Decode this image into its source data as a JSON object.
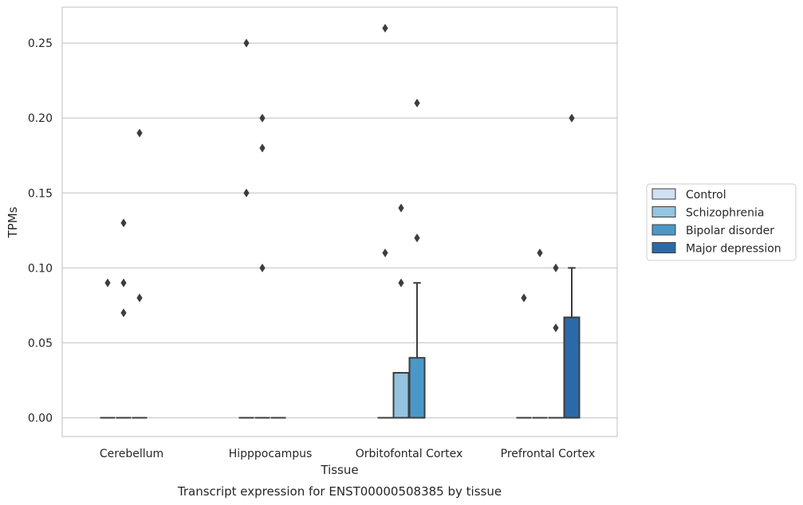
{
  "chart_data": {
    "type": "box",
    "title": "",
    "caption": "Transcript expression for ENST00000508385 by tissue",
    "xlabel": "Tissue",
    "ylabel": "TPMs",
    "ylim": [
      -0.0125,
      0.274
    ],
    "yticks": [
      "0.00",
      "0.05",
      "0.10",
      "0.15",
      "0.20",
      "0.25"
    ],
    "grid": "horizontal",
    "legend_position": "right, outside plot",
    "categories": [
      "Cerebellum",
      "Hipppocampus",
      "Orbitofontal Cortex",
      "Prefrontal Cortex"
    ],
    "series": [
      {
        "name": "Control",
        "color": "#d0e1f2",
        "boxes": [
          {
            "q1": 0,
            "median": 0,
            "q3": 0,
            "whisker_high": 0,
            "outliers": [
              0.09
            ]
          },
          {
            "q1": 0,
            "median": 0,
            "q3": 0,
            "whisker_high": 0,
            "outliers": [
              0.15,
              0.25
            ]
          },
          {
            "q1": 0,
            "median": 0,
            "q3": 0,
            "whisker_high": 0,
            "outliers": [
              0.11,
              0.26
            ]
          },
          {
            "q1": 0,
            "median": 0,
            "q3": 0,
            "whisker_high": 0,
            "outliers": [
              0.08
            ]
          }
        ]
      },
      {
        "name": "Schizophrenia",
        "color": "#94c4df",
        "boxes": [
          {
            "q1": 0,
            "median": 0,
            "q3": 0,
            "whisker_high": 0,
            "outliers": [
              0.07,
              0.09,
              0.13
            ]
          },
          {
            "q1": 0,
            "median": 0,
            "q3": 0,
            "whisker_high": 0,
            "outliers": [
              0.1,
              0.18,
              0.2
            ]
          },
          {
            "q1": 0,
            "median": 0,
            "q3": 0.03,
            "whisker_high": 0.03,
            "outliers": [
              0.09,
              0.14
            ]
          },
          {
            "q1": 0,
            "median": 0,
            "q3": 0,
            "whisker_high": 0,
            "outliers": [
              0.11
            ]
          }
        ]
      },
      {
        "name": "Bipolar disorder",
        "color": "#4a98c9",
        "boxes": [
          {
            "q1": 0,
            "median": 0,
            "q3": 0,
            "whisker_high": 0,
            "outliers": [
              0.08,
              0.19
            ]
          },
          {
            "q1": 0,
            "median": 0,
            "q3": 0,
            "whisker_high": 0,
            "outliers": []
          },
          {
            "q1": 0,
            "median": 0,
            "q3": 0.04,
            "whisker_high": 0.09,
            "outliers": [
              0.12,
              0.21
            ]
          },
          {
            "q1": 0,
            "median": 0,
            "q3": 0,
            "whisker_high": 0,
            "outliers": [
              0.06,
              0.1
            ]
          }
        ]
      },
      {
        "name": "Major depression",
        "color": "#2b6aa8",
        "boxes": [
          null,
          null,
          null,
          {
            "q1": 0,
            "median": 0,
            "q3": 0.067,
            "whisker_high": 0.1,
            "outliers": [
              0.2
            ]
          }
        ]
      }
    ]
  }
}
